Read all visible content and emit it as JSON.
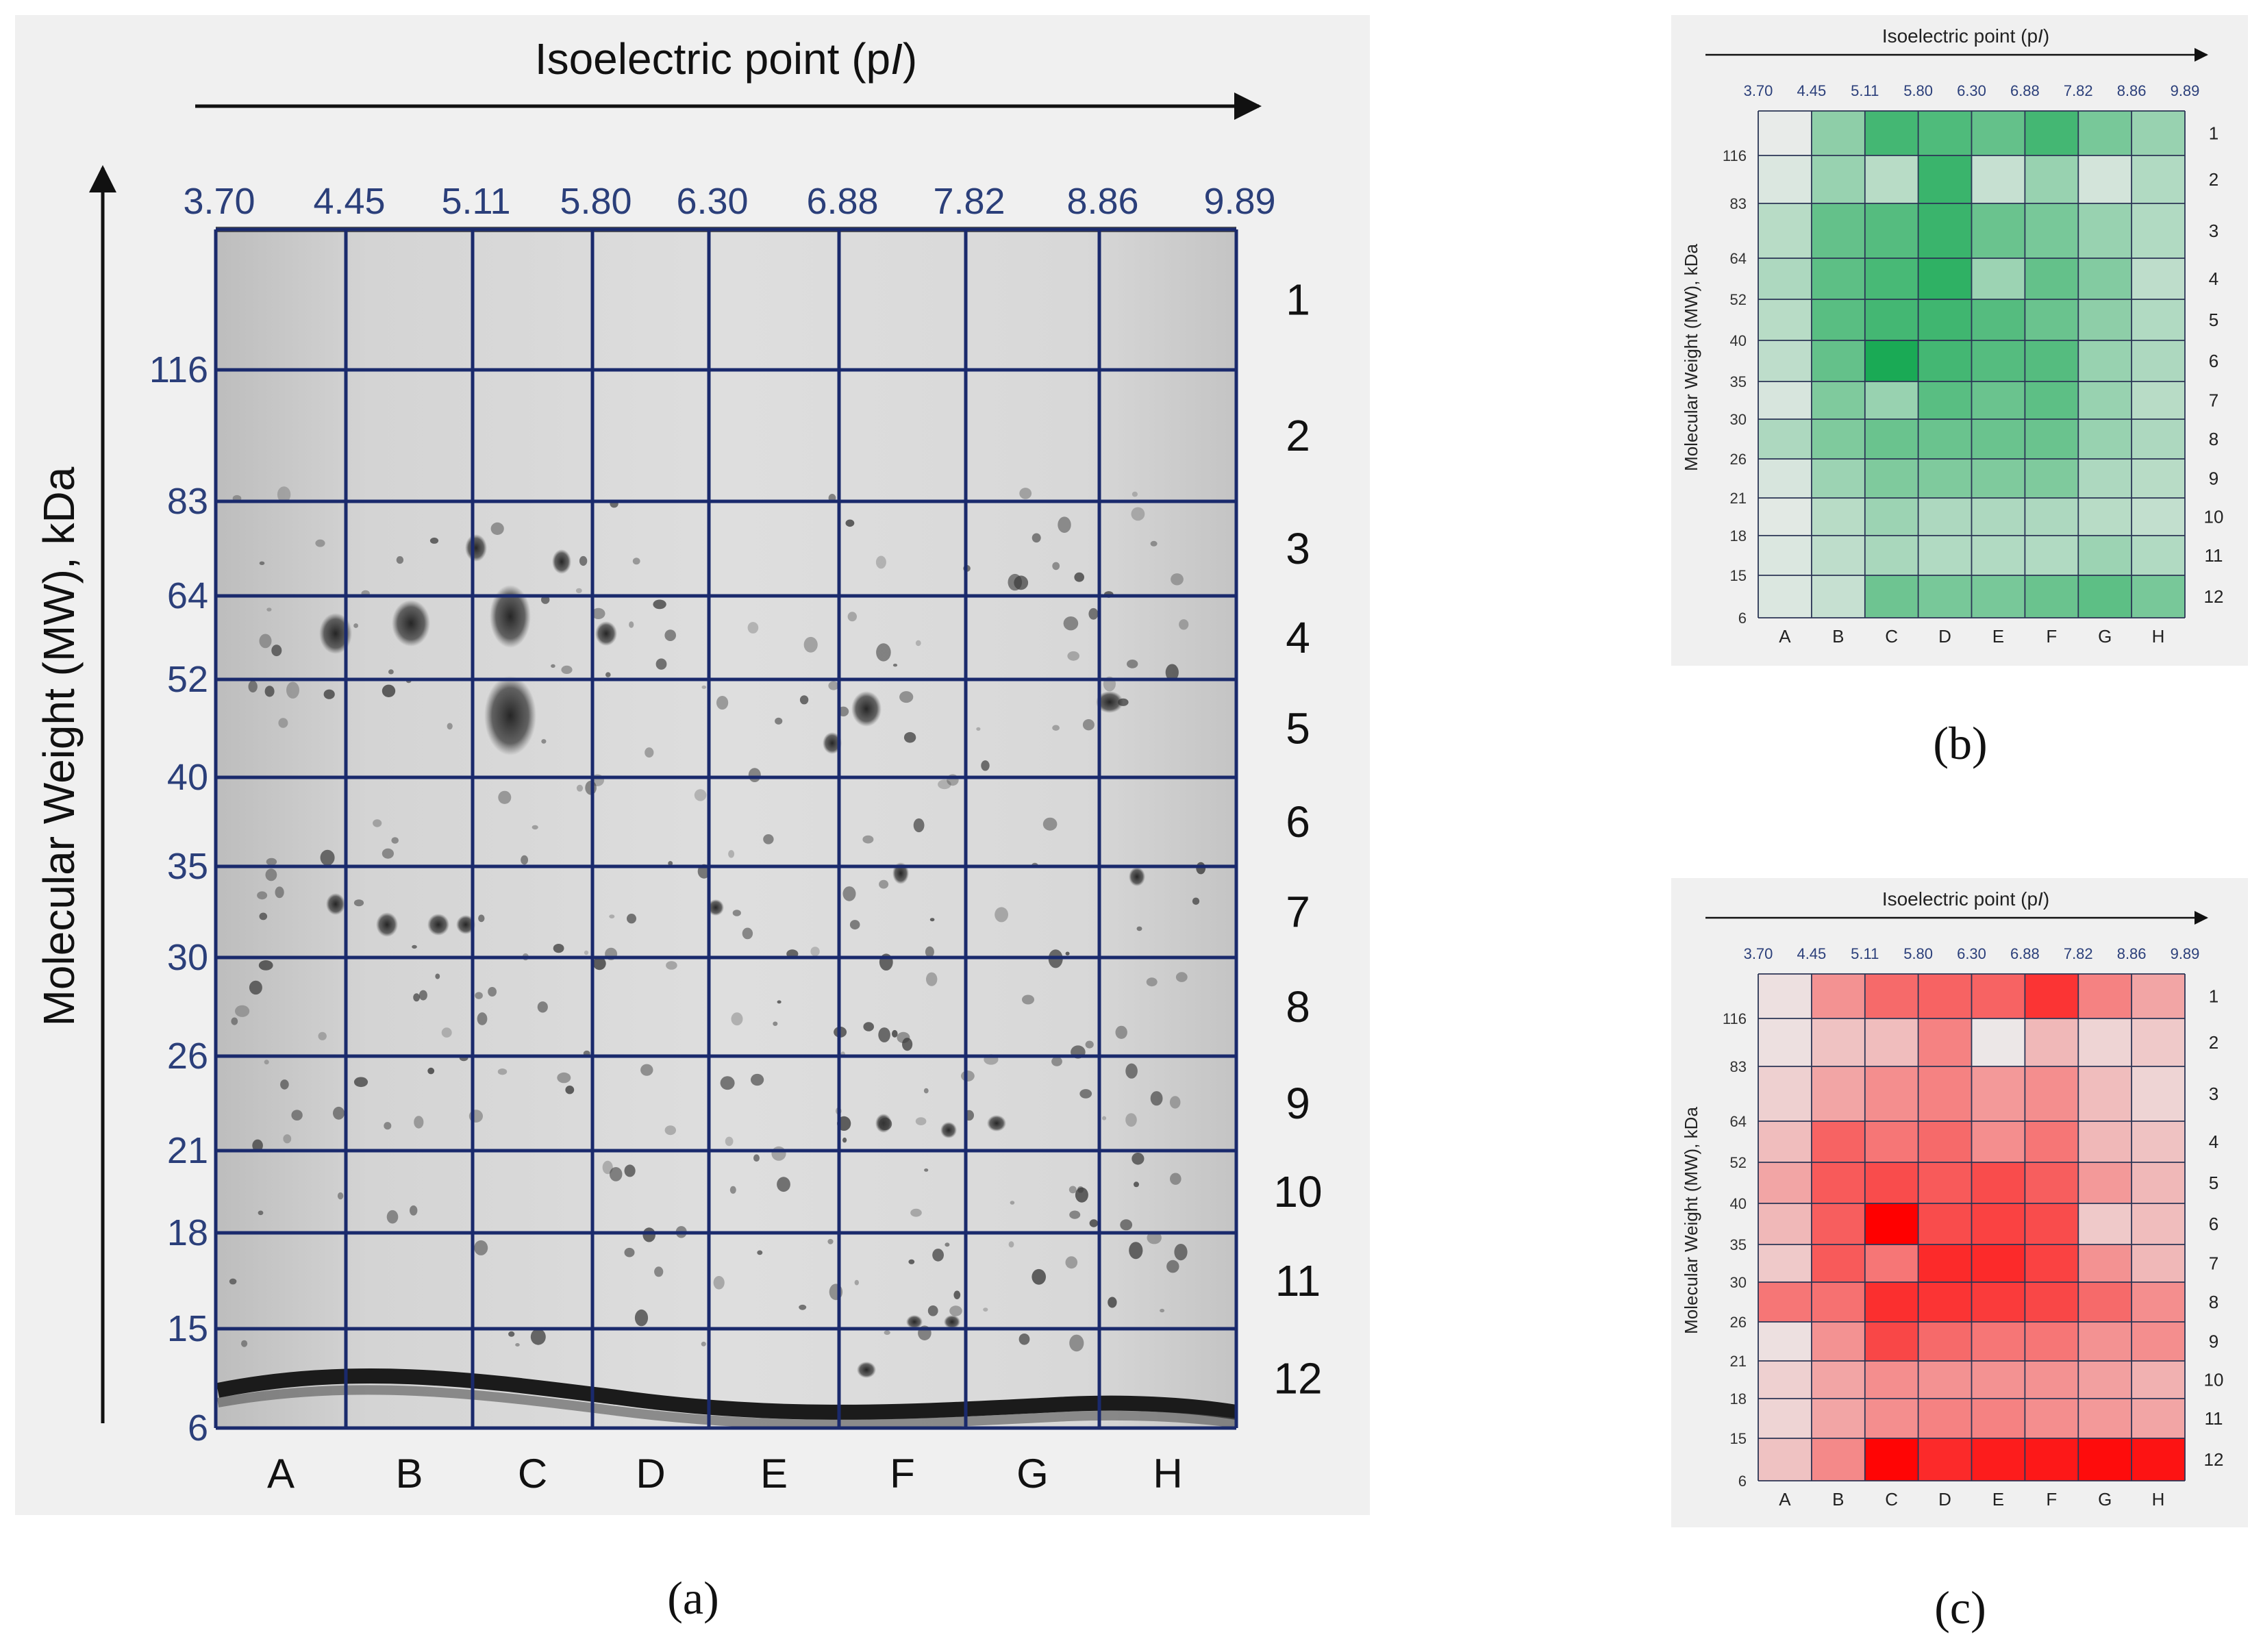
{
  "panel_a": {
    "label": "(a)",
    "x_title_text": "Isoelectric point (p",
    "x_title_italic": "I",
    "x_title_close": ")",
    "y_title": "Molecular Weight (MW), kDa",
    "pi_ticks": [
      "3.70",
      "4.45",
      "5.11",
      "5.80",
      "6.30",
      "6.88",
      "7.82",
      "8.86",
      "9.89"
    ],
    "mw_ticks": [
      "116",
      "83",
      "64",
      "52",
      "40",
      "35",
      "30",
      "26",
      "21",
      "18",
      "15",
      "6"
    ],
    "columns": [
      "A",
      "B",
      "C",
      "D",
      "E",
      "F",
      "G",
      "H"
    ],
    "rows": [
      "1",
      "2",
      "3",
      "4",
      "5",
      "6",
      "7",
      "8",
      "9",
      "10",
      "11",
      "12"
    ]
  },
  "panel_b": {
    "label": "(b)",
    "x_title_text": "Isoelectric point (p",
    "x_title_italic": "I",
    "x_title_close": ")",
    "y_title": "Molecular Weight (MW), kDa"
  },
  "panel_c": {
    "label": "(c)",
    "x_title_text": "Isoelectric point (p",
    "x_title_italic": "I",
    "x_title_close": ")",
    "y_title": "Molecular Weight (MW), kDa"
  },
  "colors": {
    "grid_line": "#1a2a6c",
    "tick_text": "#2b3f7a",
    "gel_background": "#d8d8d8",
    "spot_dark": "#2a2a2a",
    "green_max": "#1aaa55",
    "red_max": "#ff0000",
    "empty_cell": "#ececec"
  },
  "chart_data": [
    {
      "type": "heatmap",
      "panel": "b",
      "title": "Isoelectric point (pI)",
      "xlabel": "Isoelectric point (pI)",
      "ylabel": "Molecular Weight (MW), kDa",
      "x_tick_labels": [
        "3.70",
        "4.45",
        "5.11",
        "5.80",
        "6.30",
        "6.88",
        "7.82",
        "8.86",
        "9.89"
      ],
      "y_tick_labels": [
        "116",
        "83",
        "64",
        "52",
        "40",
        "35",
        "30",
        "26",
        "21",
        "18",
        "15",
        "6"
      ],
      "columns": [
        "A",
        "B",
        "C",
        "D",
        "E",
        "F",
        "G",
        "H"
      ],
      "rows": [
        "1",
        "2",
        "3",
        "4",
        "5",
        "6",
        "7",
        "8",
        "9",
        "10",
        "11",
        "12"
      ],
      "color_scale": "green",
      "value_range": [
        0,
        1
      ],
      "values": [
        [
          0.02,
          0.45,
          0.8,
          0.75,
          0.65,
          0.8,
          0.55,
          0.4
        ],
        [
          0.08,
          0.4,
          0.25,
          0.85,
          0.18,
          0.4,
          0.12,
          0.28
        ],
        [
          0.25,
          0.65,
          0.72,
          0.85,
          0.62,
          0.55,
          0.4,
          0.28
        ],
        [
          0.3,
          0.68,
          0.78,
          0.9,
          0.38,
          0.65,
          0.5,
          0.22
        ],
        [
          0.25,
          0.7,
          0.8,
          0.82,
          0.72,
          0.62,
          0.45,
          0.28
        ],
        [
          0.22,
          0.65,
          1.0,
          0.8,
          0.72,
          0.72,
          0.4,
          0.3
        ],
        [
          0.1,
          0.52,
          0.4,
          0.7,
          0.62,
          0.68,
          0.4,
          0.25
        ],
        [
          0.3,
          0.52,
          0.62,
          0.62,
          0.62,
          0.62,
          0.4,
          0.3
        ],
        [
          0.1,
          0.38,
          0.52,
          0.52,
          0.52,
          0.52,
          0.3,
          0.25
        ],
        [
          0.05,
          0.25,
          0.38,
          0.3,
          0.3,
          0.3,
          0.25,
          0.2
        ],
        [
          0.08,
          0.22,
          0.32,
          0.28,
          0.28,
          0.28,
          0.38,
          0.28
        ],
        [
          0.08,
          0.18,
          0.6,
          0.55,
          0.55,
          0.62,
          0.68,
          0.55
        ]
      ],
      "row_labels_right": [
        "1",
        "2",
        "3",
        "4",
        "5",
        "6",
        "7",
        "8",
        "9",
        "10",
        "11",
        "12"
      ]
    },
    {
      "type": "heatmap",
      "panel": "c",
      "title": "Isoelectric point (pI)",
      "xlabel": "Isoelectric point (pI)",
      "ylabel": "Molecular Weight (MW), kDa",
      "x_tick_labels": [
        "3.70",
        "4.45",
        "5.11",
        "5.80",
        "6.30",
        "6.88",
        "7.82",
        "8.86",
        "9.89"
      ],
      "y_tick_labels": [
        "116",
        "83",
        "64",
        "52",
        "40",
        "35",
        "30",
        "26",
        "21",
        "18",
        "15",
        "6"
      ],
      "columns": [
        "A",
        "B",
        "C",
        "D",
        "E",
        "F",
        "G",
        "H"
      ],
      "rows": [
        "1",
        "2",
        "3",
        "4",
        "5",
        "6",
        "7",
        "8",
        "9",
        "10",
        "11",
        "12"
      ],
      "color_scale": "red",
      "value_range": [
        0,
        1
      ],
      "values": [
        [
          0.05,
          0.38,
          0.55,
          0.58,
          0.58,
          0.78,
          0.45,
          0.3
        ],
        [
          0.05,
          0.18,
          0.2,
          0.45,
          0.02,
          0.22,
          0.1,
          0.15
        ],
        [
          0.12,
          0.3,
          0.4,
          0.45,
          0.35,
          0.4,
          0.2,
          0.1
        ],
        [
          0.2,
          0.58,
          0.5,
          0.55,
          0.4,
          0.5,
          0.22,
          0.18
        ],
        [
          0.3,
          0.62,
          0.68,
          0.62,
          0.68,
          0.6,
          0.35,
          0.22
        ],
        [
          0.22,
          0.6,
          1.0,
          0.68,
          0.72,
          0.68,
          0.15,
          0.2
        ],
        [
          0.15,
          0.62,
          0.5,
          0.82,
          0.82,
          0.72,
          0.38,
          0.22
        ],
        [
          0.5,
          0.52,
          0.8,
          0.78,
          0.75,
          0.7,
          0.55,
          0.4
        ],
        [
          0.05,
          0.38,
          0.7,
          0.55,
          0.5,
          0.5,
          0.38,
          0.4
        ],
        [
          0.12,
          0.3,
          0.4,
          0.38,
          0.38,
          0.38,
          0.32,
          0.25
        ],
        [
          0.1,
          0.3,
          0.4,
          0.45,
          0.45,
          0.4,
          0.35,
          0.3
        ],
        [
          0.18,
          0.42,
          0.98,
          0.82,
          0.88,
          0.9,
          0.95,
          0.92
        ]
      ],
      "row_labels_right": [
        "1",
        "2",
        "3",
        "4",
        "5",
        "6",
        "7",
        "8",
        "9",
        "10",
        "11",
        "12"
      ]
    }
  ]
}
